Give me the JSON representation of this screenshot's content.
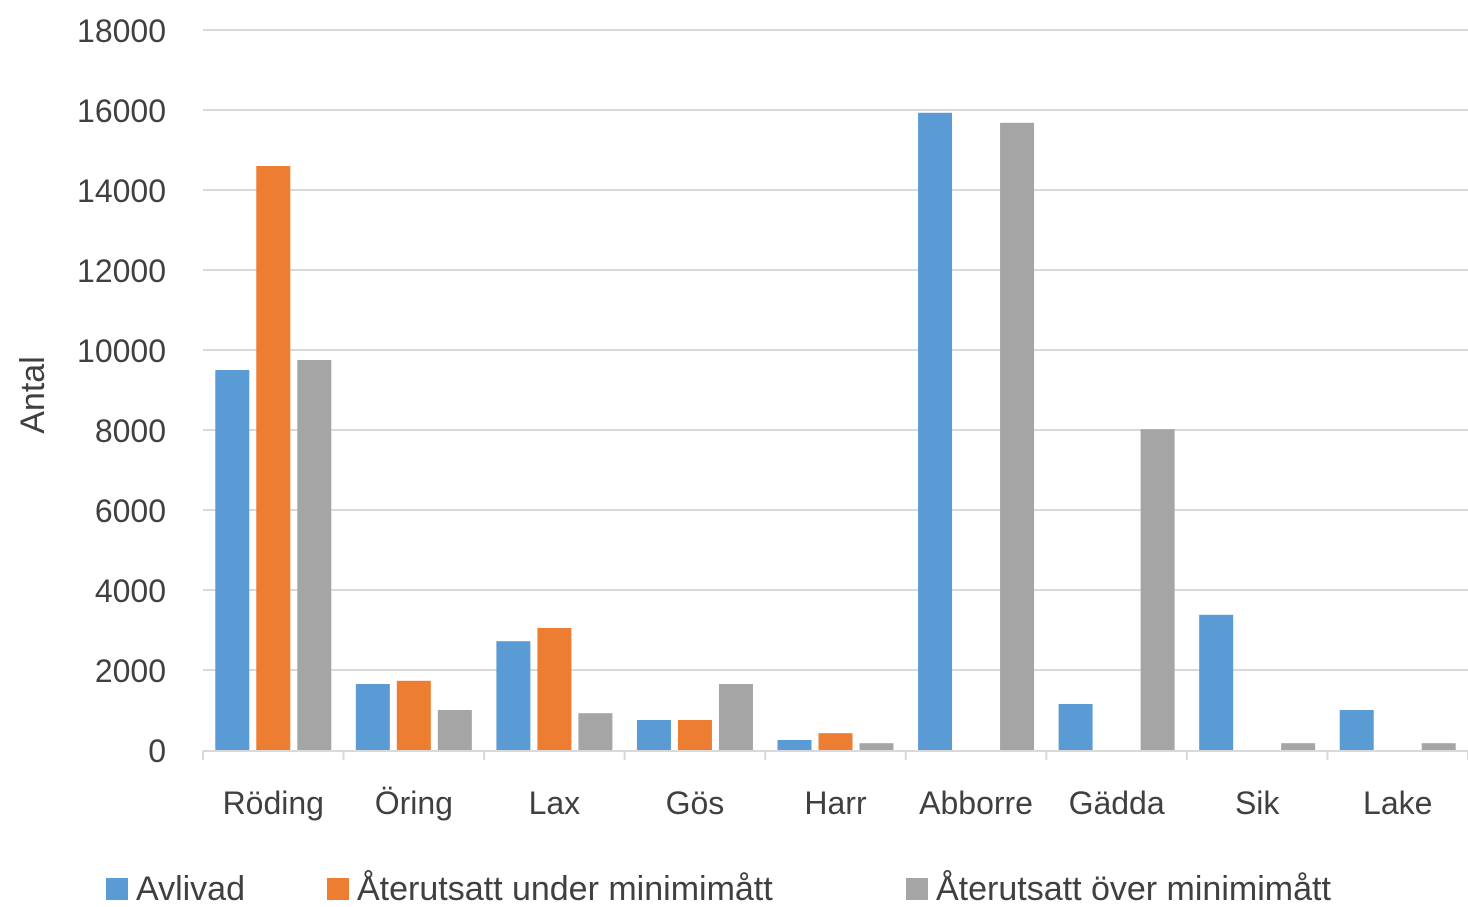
{
  "chart_data": {
    "type": "bar",
    "title": "",
    "xlabel": "",
    "ylabel": "Antal",
    "ylim": [
      0,
      18000
    ],
    "yticks": [
      0,
      2000,
      4000,
      6000,
      8000,
      10000,
      12000,
      14000,
      16000,
      18000
    ],
    "grid": true,
    "legend_position": "bottom",
    "categories": [
      "Röding",
      "Öring",
      "Lax",
      "Gös",
      "Harr",
      "Abborre",
      "Gädda",
      "Sik",
      "Lake"
    ],
    "series": [
      {
        "name": "Avlivad",
        "color": "#5B9BD5",
        "values": [
          9500,
          1650,
          2720,
          750,
          250,
          15930,
          1150,
          3380,
          1000
        ]
      },
      {
        "name": "Återutsatt  under minimimått",
        "color": "#ED7D31",
        "values": [
          14600,
          1730,
          3050,
          750,
          420,
          0,
          0,
          0,
          0
        ]
      },
      {
        "name": "Återutsatt  över minimimått",
        "color": "#A5A5A5",
        "values": [
          9750,
          1000,
          920,
          1650,
          170,
          15680,
          8020,
          170,
          170
        ]
      }
    ]
  }
}
